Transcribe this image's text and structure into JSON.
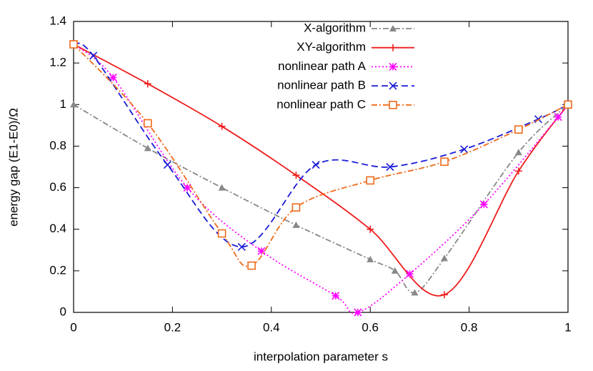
{
  "chart_data": {
    "type": "line",
    "xlabel": "interpolation parameter s",
    "ylabel": "energy gap (E1-E0)/Ω",
    "xlim": [
      0,
      1
    ],
    "ylim": [
      0,
      1.4
    ],
    "xticks": [
      0,
      0.2,
      0.4,
      0.6,
      0.8,
      1
    ],
    "yticks": [
      0,
      0.2,
      0.4,
      0.6,
      0.8,
      1,
      1.2,
      1.4
    ],
    "legend": "top-right",
    "series": [
      {
        "name": "X-algorithm",
        "color": "#888888",
        "marker": "triangle",
        "dash": "8 3 2 3",
        "x": [
          0,
          0.15,
          0.3,
          0.45,
          0.6,
          0.65,
          0.69,
          0.75,
          0.9,
          1
        ],
        "values": [
          1.0,
          0.79,
          0.6,
          0.42,
          0.255,
          0.2,
          0.095,
          0.26,
          0.77,
          1.0
        ]
      },
      {
        "name": "XY-algorithm",
        "color": "#ee1c1c",
        "marker": "plus",
        "dash": "none",
        "x": [
          0,
          0.15,
          0.3,
          0.45,
          0.6,
          0.75,
          0.9,
          1
        ],
        "values": [
          1.29,
          1.1,
          0.895,
          0.66,
          0.4,
          0.085,
          0.68,
          1.0
        ]
      },
      {
        "name": "nonlinear path A",
        "color": "#ff00ff",
        "marker": "asterisk",
        "dash": "2 3",
        "x": [
          0,
          0.08,
          0.23,
          0.38,
          0.53,
          0.575,
          0.68,
          0.83,
          0.98,
          1
        ],
        "values": [
          1.29,
          1.13,
          0.6,
          0.295,
          0.08,
          0,
          0.185,
          0.52,
          0.94,
          1.0
        ]
      },
      {
        "name": "nonlinear path B",
        "color": "#1a1ad8",
        "marker": "x",
        "dash": "9 5",
        "x": [
          0,
          0.04,
          0.19,
          0.34,
          0.49,
          0.64,
          0.79,
          0.94,
          1
        ],
        "values": [
          1.29,
          1.235,
          0.71,
          0.315,
          0.71,
          0.7,
          0.785,
          0.93,
          1.0
        ]
      },
      {
        "name": "nonlinear path C",
        "color": "#ee6a1a",
        "marker": "square",
        "dash": "8 3 2 3",
        "x": [
          0,
          0.15,
          0.3,
          0.36,
          0.45,
          0.6,
          0.75,
          0.9,
          1
        ],
        "values": [
          1.29,
          0.91,
          0.38,
          0.225,
          0.505,
          0.635,
          0.725,
          0.88,
          1.0
        ]
      }
    ]
  }
}
